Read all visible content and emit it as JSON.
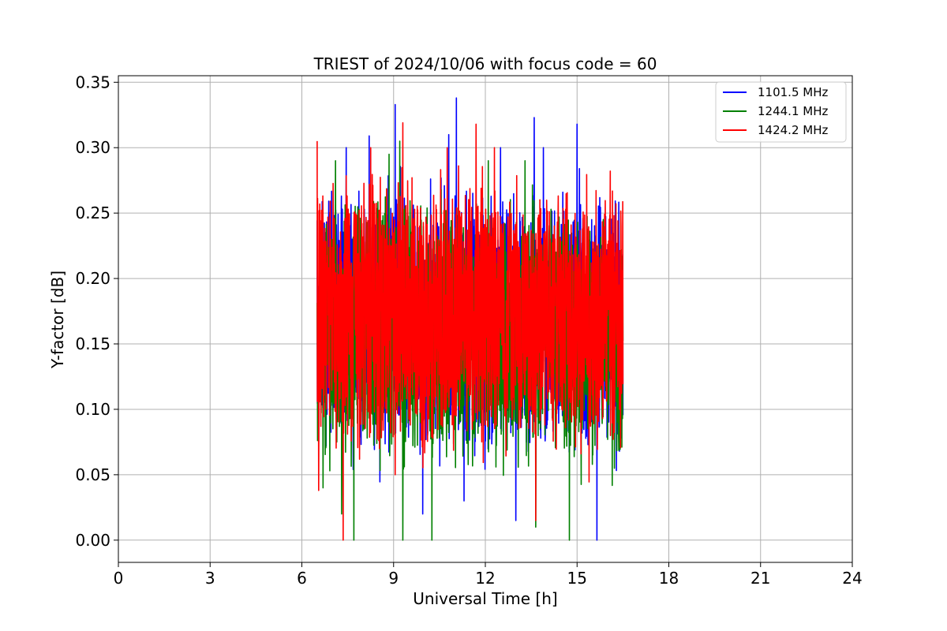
{
  "chart_data": {
    "type": "line",
    "title": "TRIEST of 2024/10/06 with focus code = 60",
    "xlabel": "Universal Time [h]",
    "ylabel": "Y-factor [dB]",
    "xlim": [
      0,
      24
    ],
    "ylim": [
      -0.017,
      0.355
    ],
    "xticks": [
      0,
      3,
      6,
      9,
      12,
      15,
      18,
      21,
      24
    ],
    "xtick_labels": [
      "0",
      "3",
      "6",
      "9",
      "12",
      "15",
      "18",
      "21",
      "24"
    ],
    "yticks": [
      0.0,
      0.05,
      0.1,
      0.15,
      0.2,
      0.25,
      0.3,
      0.35
    ],
    "ytick_labels": [
      "0.00",
      "0.05",
      "0.10",
      "0.15",
      "0.20",
      "0.25",
      "0.30",
      "0.35"
    ],
    "grid": true,
    "legend_position": "top-right",
    "data_span_hours": [
      6.5,
      16.5
    ],
    "series": [
      {
        "name": "1101.5 MHz",
        "color": "#0000ff",
        "mean": 0.165,
        "max": 0.338,
        "min": 0.0,
        "spikes_high": [
          [
            9.05,
            0.333
          ],
          [
            11.05,
            0.338
          ],
          [
            13.6,
            0.323
          ],
          [
            15.0,
            0.318
          ],
          [
            8.2,
            0.309
          ],
          [
            10.8,
            0.31
          ],
          [
            7.45,
            0.3
          ],
          [
            12.5,
            0.3
          ],
          [
            13.9,
            0.3
          ]
        ],
        "spikes_low": [
          [
            15.65,
            0.0
          ],
          [
            9.95,
            0.02
          ],
          [
            13.0,
            0.015
          ],
          [
            11.3,
            0.03
          ]
        ]
      },
      {
        "name": "1244.1 MHz",
        "color": "#008000",
        "mean": 0.16,
        "max": 0.305,
        "min": 0.0,
        "spikes_high": [
          [
            9.2,
            0.305
          ],
          [
            8.85,
            0.295
          ],
          [
            7.1,
            0.29
          ],
          [
            13.3,
            0.29
          ],
          [
            12.1,
            0.29
          ]
        ],
        "spikes_low": [
          [
            7.7,
            0.0
          ],
          [
            10.25,
            0.0
          ],
          [
            9.3,
            0.0
          ],
          [
            14.75,
            0.0
          ],
          [
            7.3,
            0.02
          ],
          [
            13.65,
            0.01
          ]
        ]
      },
      {
        "name": "1424.2 MHz",
        "color": "#ff0000",
        "mean": 0.17,
        "max": 0.319,
        "min": 0.0,
        "spikes_high": [
          [
            9.3,
            0.319
          ],
          [
            6.5,
            0.305
          ],
          [
            11.7,
            0.318
          ],
          [
            10.75,
            0.3
          ],
          [
            8.25,
            0.3
          ],
          [
            12.3,
            0.3
          ]
        ],
        "spikes_low": [
          [
            7.35,
            0.0
          ],
          [
            6.55,
            0.038
          ],
          [
            13.65,
            0.015
          ],
          [
            9.05,
            0.05
          ]
        ]
      }
    ]
  }
}
